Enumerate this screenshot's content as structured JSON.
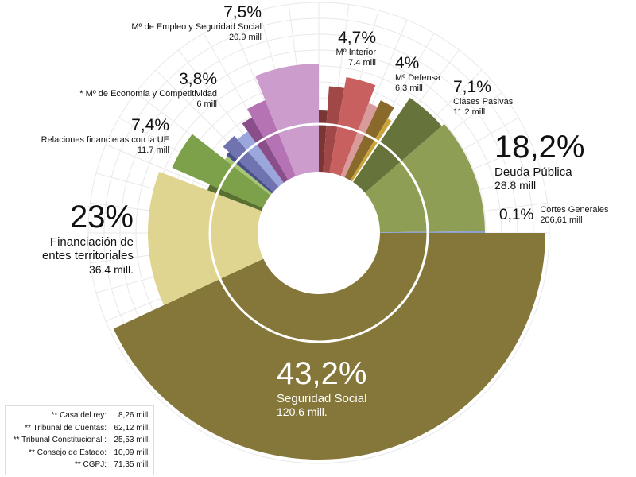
{
  "chart_data": {
    "type": "pie",
    "variant": "polar-area",
    "categories": [
      {
        "id": "seguridad",
        "pct": "43,2%",
        "name": "Seguridad Social",
        "amount": "120.6 mill.",
        "pct_value": 43.2,
        "color": "#857739"
      },
      {
        "id": "financiacion",
        "pct": "23%",
        "name_lines": [
          "Financiación de",
          "entes territoriales"
        ],
        "amount": "36.4 mill.",
        "pct_value": 23,
        "color": "#e0d590"
      },
      {
        "id": "deuda",
        "pct": "18,2%",
        "name": "Deuda Pública",
        "amount": "28.8 mill",
        "pct_value": 18.2,
        "color": "#8f9e55"
      },
      {
        "id": "empleo",
        "pct": "7,5%",
        "name": "Mº de Empleo y Seguridad Social",
        "amount": "20.9 mill",
        "pct_value": 7.5,
        "color": "#cc9ccc"
      },
      {
        "id": "relaciones",
        "pct": "7,4%",
        "name": "Relaciones financieras con la UE",
        "amount": "11.7 mill",
        "pct_value": 7.4,
        "color": "#7da04a"
      },
      {
        "id": "clases",
        "pct": "7,1%",
        "name": "Clases Pasivas",
        "amount": "11.2 mill",
        "pct_value": 7.1,
        "color": "#66733a"
      },
      {
        "id": "interior",
        "pct": "4,7%",
        "name": "Mº Interior",
        "amount": "7.4 mill",
        "pct_value": 4.7,
        "color": "#c96060"
      },
      {
        "id": "defensa",
        "pct": "4%",
        "name": "Mº Defensa",
        "amount": "6.3 mill",
        "pct_value": 4,
        "color": "#8a6a2a"
      },
      {
        "id": "economia",
        "pct": "3,8%",
        "name": "* Mº de Economía y Competitividad",
        "amount": "6 mill",
        "pct_value": 3.8,
        "color": "#6f73b0"
      },
      {
        "id": "cortes",
        "pct": "0,1%",
        "name": "Cortes Generales",
        "amount": "206,61 mill",
        "pct_value": 0.1,
        "color": "#8f9fd0"
      }
    ],
    "footnotes": [
      {
        "label": "** Casa del rey:",
        "value": "8,26 mill."
      },
      {
        "label": "** Tribunal de Cuentas:",
        "value": "62,12 mill."
      },
      {
        "label": "** Tribunal Constitucional :",
        "value": "25,53 mill."
      },
      {
        "label": "** Consejo de Estado:",
        "value": "10,09 mill."
      },
      {
        "label": "** CGPJ:",
        "value": "71,35 mill."
      }
    ],
    "grid": true
  }
}
